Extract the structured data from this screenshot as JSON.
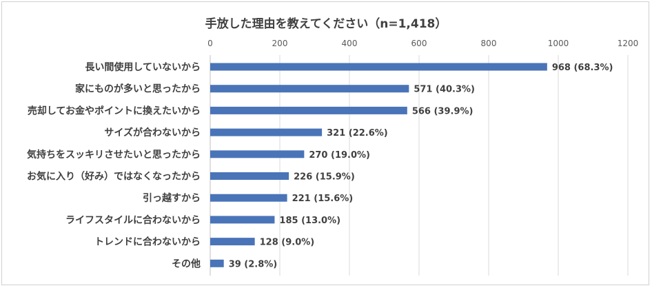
{
  "chart_data": {
    "type": "bar",
    "orientation": "horizontal",
    "title": "手放した理由を教えてください（n=1,418）",
    "categories": [
      "長い間使用していないから",
      "家にものが多いと思ったから",
      "売却してお金やポイントに換えたいから",
      "サイズが合わないから",
      "気持ちをスッキリさせたいと思ったから",
      "お気に入り（好み）ではなくなったから",
      "引っ越すから",
      "ライフスタイルに合わないから",
      "トレンドに合わないから",
      "その他"
    ],
    "values": [
      968,
      571,
      566,
      321,
      270,
      226,
      221,
      185,
      128,
      39
    ],
    "data_labels": [
      "968 (68.3%)",
      "571 (40.3%)",
      "566 (39.9%)",
      "321 (22.6%)",
      "270 (19.0%)",
      "226 (15.9%)",
      "221 (15.6%)",
      "185 (13.0%)",
      "128 (9.0%)",
      "39 (2.8%)"
    ],
    "xlim": [
      0,
      1200
    ],
    "xticks": [
      "0",
      "200",
      "400",
      "600",
      "800",
      "1000",
      "1200"
    ],
    "x_axis_position": "top",
    "grid": true,
    "legend": "none",
    "bar_color": "#4a74b8"
  }
}
